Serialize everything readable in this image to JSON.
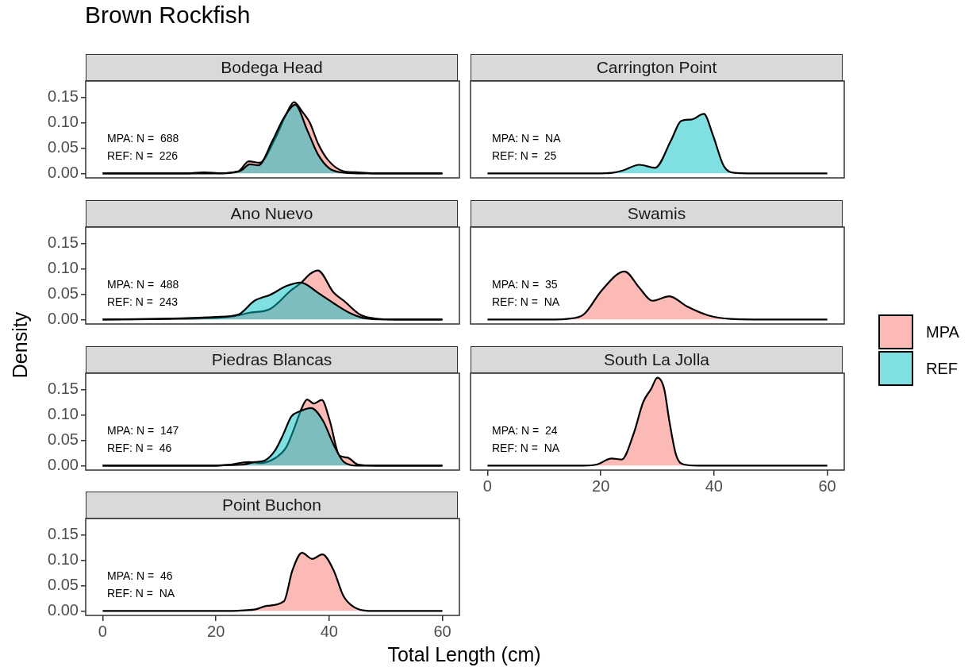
{
  "chart_data": [
    {
      "type": "other",
      "title": "Brown Rockfish",
      "xlabel": "Total Length (cm)",
      "ylabel": "Density"
    },
    {
      "type": "area",
      "title": "Bodega Head",
      "xlim": [
        -3,
        63
      ],
      "xticks": [
        0,
        20,
        40,
        60
      ],
      "ylim": [
        -0.009,
        0.183
      ],
      "yticks": [
        {
          "value": 0,
          "label": "0.00"
        },
        {
          "value": 0.05,
          "label": "0.05"
        },
        {
          "value": 0.1,
          "label": "0.10"
        },
        {
          "value": 0.15,
          "label": "0.15"
        }
      ],
      "tick_labels": "y",
      "grid": false,
      "legend": "right",
      "annotations": [
        "MPA: N =  688",
        "REF: N =  226"
      ],
      "series": [
        {
          "name": "MPA",
          "color": "#f8766d",
          "x": [
            0,
            15,
            18,
            21,
            24,
            25.8,
            27.7,
            30.5,
            32.4,
            33.8,
            35.2,
            36.6,
            38,
            39.9,
            42.6,
            45,
            48,
            60
          ],
          "values": [
            0,
            0,
            0.002,
            0,
            0.004,
            0.024,
            0.021,
            0.07,
            0.117,
            0.141,
            0.123,
            0.1,
            0.06,
            0.025,
            0.004,
            0.002,
            0,
            0
          ]
        },
        {
          "name": "REF",
          "color": "#00bfc4",
          "x": [
            0,
            20,
            23,
            24.5,
            26,
            27.5,
            30,
            32,
            34,
            36.1,
            38,
            40,
            42,
            45,
            60
          ],
          "values": [
            0,
            0,
            0.002,
            0.006,
            0.018,
            0.016,
            0.065,
            0.11,
            0.136,
            0.086,
            0.038,
            0.01,
            0.002,
            0,
            0
          ]
        }
      ]
    },
    {
      "type": "area",
      "title": "Carrington Point",
      "xlim": [
        -3,
        63
      ],
      "xticks": [
        0,
        20,
        40,
        60
      ],
      "ylim": [
        -0.009,
        0.183
      ],
      "yticks": [
        {
          "value": 0,
          "label": "0.00"
        },
        {
          "value": 0.05,
          "label": "0.05"
        },
        {
          "value": 0.1,
          "label": "0.10"
        },
        {
          "value": 0.15,
          "label": "0.15"
        }
      ],
      "tick_labels": false,
      "grid": false,
      "legend": "right",
      "annotations": [
        "MPA: N =  NA",
        "REF: N =  25"
      ],
      "series": [
        {
          "name": "REF",
          "color": "#00bfc4",
          "x": [
            0,
            20,
            22,
            24,
            26.8,
            29.6,
            32.4,
            34.2,
            36.1,
            38.2,
            39.8,
            41.7,
            43.6,
            46,
            60
          ],
          "values": [
            0,
            0,
            0.001,
            0.006,
            0.017,
            0.011,
            0.065,
            0.104,
            0.107,
            0.118,
            0.076,
            0.015,
            0.001,
            0,
            0
          ]
        }
      ]
    },
    {
      "type": "area",
      "title": "Ano Nuevo",
      "xlim": [
        -3,
        63
      ],
      "xticks": [
        0,
        20,
        40,
        60
      ],
      "ylim": [
        -0.009,
        0.183
      ],
      "yticks": [
        {
          "value": 0,
          "label": "0.00"
        },
        {
          "value": 0.05,
          "label": "0.05"
        },
        {
          "value": 0.1,
          "label": "0.10"
        },
        {
          "value": 0.15,
          "label": "0.15"
        }
      ],
      "tick_labels": "y",
      "grid": false,
      "legend": "right",
      "annotations": [
        "MPA: N =  488",
        "REF: N =  243"
      ],
      "series": [
        {
          "name": "MPA",
          "color": "#f8766d",
          "x": [
            0,
            10,
            20,
            23,
            25.8,
            29.6,
            33.3,
            35,
            36.6,
            38,
            40.8,
            42.6,
            45.4,
            48,
            52,
            60
          ],
          "values": [
            0,
            0.001,
            0.003,
            0.006,
            0.013,
            0.021,
            0.058,
            0.072,
            0.09,
            0.097,
            0.053,
            0.037,
            0.01,
            0.002,
            0,
            0
          ]
        },
        {
          "name": "REF",
          "color": "#00bfc4",
          "x": [
            0,
            10,
            20,
            24,
            26.8,
            29.6,
            32.4,
            35,
            38,
            40.8,
            43.6,
            46,
            50,
            60
          ],
          "values": [
            0,
            0.001,
            0.005,
            0.01,
            0.037,
            0.049,
            0.066,
            0.073,
            0.053,
            0.032,
            0.013,
            0.003,
            0,
            0
          ]
        }
      ]
    },
    {
      "type": "area",
      "title": "Swamis",
      "xlim": [
        -3,
        63
      ],
      "xticks": [
        0,
        20,
        40,
        60
      ],
      "ylim": [
        -0.009,
        0.183
      ],
      "yticks": [
        {
          "value": 0,
          "label": "0.00"
        },
        {
          "value": 0.05,
          "label": "0.05"
        },
        {
          "value": 0.1,
          "label": "0.10"
        },
        {
          "value": 0.15,
          "label": "0.15"
        }
      ],
      "tick_labels": false,
      "grid": false,
      "legend": "right",
      "annotations": [
        "MPA: N =  35",
        "REF: N =  NA"
      ],
      "series": [
        {
          "name": "MPA",
          "color": "#f8766d",
          "x": [
            0,
            12,
            14,
            17,
            20.2,
            24.2,
            26.8,
            29.1,
            32.1,
            35.2,
            39,
            43,
            47,
            60
          ],
          "values": [
            0,
            0,
            0.001,
            0.01,
            0.058,
            0.095,
            0.063,
            0.037,
            0.046,
            0.026,
            0.008,
            0.001,
            0,
            0
          ]
        }
      ]
    },
    {
      "type": "area",
      "title": "Piedras Blancas",
      "xlim": [
        -3,
        63
      ],
      "xticks": [
        0,
        20,
        40,
        60
      ],
      "ylim": [
        -0.009,
        0.183
      ],
      "yticks": [
        {
          "value": 0,
          "label": "0.00"
        },
        {
          "value": 0.05,
          "label": "0.05"
        },
        {
          "value": 0.1,
          "label": "0.10"
        },
        {
          "value": 0.15,
          "label": "0.15"
        }
      ],
      "tick_labels": "y",
      "grid": false,
      "legend": "right",
      "annotations": [
        "MPA: N =  147",
        "REF: N =  46"
      ],
      "series": [
        {
          "name": "MPA",
          "color": "#f8766d",
          "x": [
            0,
            20,
            22,
            25.8,
            27.7,
            30.5,
            32.4,
            33.8,
            35.2,
            36.1,
            37.3,
            38.7,
            40.1,
            41.8,
            43.2,
            45.1,
            48,
            60
          ],
          "values": [
            0,
            0,
            0.001,
            0.007,
            0.005,
            0.015,
            0.036,
            0.073,
            0.115,
            0.131,
            0.123,
            0.13,
            0.089,
            0.02,
            0.016,
            0.002,
            0,
            0
          ]
        },
        {
          "name": "REF",
          "color": "#00bfc4",
          "x": [
            0,
            20,
            22,
            24.9,
            26.8,
            28.6,
            30.5,
            31.9,
            33.3,
            34.7,
            36.8,
            38.9,
            40.8,
            42.6,
            45,
            60
          ],
          "values": [
            0,
            0,
            0.001,
            0.002,
            0.007,
            0.01,
            0.031,
            0.062,
            0.097,
            0.107,
            0.114,
            0.089,
            0.041,
            0.007,
            0,
            0
          ]
        }
      ]
    },
    {
      "type": "area",
      "title": "South La Jolla",
      "xlim": [
        -3,
        63
      ],
      "xticks": [
        0,
        20,
        40,
        60
      ],
      "ylim": [
        -0.009,
        0.183
      ],
      "yticks": [
        {
          "value": 0,
          "label": "0.00"
        },
        {
          "value": 0.05,
          "label": "0.05"
        },
        {
          "value": 0.1,
          "label": "0.10"
        },
        {
          "value": 0.15,
          "label": "0.15"
        }
      ],
      "tick_labels": "x",
      "grid": false,
      "legend": "right",
      "annotations": [
        "MPA: N =  24",
        "REF: N =  NA"
      ],
      "series": [
        {
          "name": "MPA",
          "color": "#f8766d",
          "x": [
            0,
            17,
            19.3,
            21.9,
            23.7,
            25.8,
            27.5,
            28.9,
            30,
            31.2,
            32.1,
            33.3,
            34.7,
            37,
            60
          ],
          "values": [
            0,
            0,
            0.002,
            0.014,
            0.012,
            0.063,
            0.126,
            0.152,
            0.174,
            0.152,
            0.089,
            0.021,
            0.002,
            0,
            0
          ]
        }
      ]
    },
    {
      "type": "area",
      "title": "Point Buchon",
      "xlim": [
        -3,
        63
      ],
      "xticks": [
        0,
        20,
        40,
        60
      ],
      "ylim": [
        -0.009,
        0.183
      ],
      "yticks": [
        {
          "value": 0,
          "label": "0.00"
        },
        {
          "value": 0.05,
          "label": "0.05"
        },
        {
          "value": 0.1,
          "label": "0.10"
        },
        {
          "value": 0.15,
          "label": "0.15"
        }
      ],
      "grid": false,
      "legend": "right",
      "annotations": [
        "MPA: N =  46",
        "REF: N =  NA"
      ],
      "series": [
        {
          "name": "MPA",
          "color": "#f8766d",
          "x": [
            0,
            23,
            25,
            27,
            29,
            32,
            33.5,
            35.2,
            37,
            38.8,
            40.8,
            42.5,
            44.3,
            47,
            60
          ],
          "values": [
            0,
            0,
            0.001,
            0.003,
            0.01,
            0.019,
            0.08,
            0.115,
            0.103,
            0.112,
            0.08,
            0.03,
            0.008,
            0,
            0
          ]
        }
      ]
    }
  ]
}
